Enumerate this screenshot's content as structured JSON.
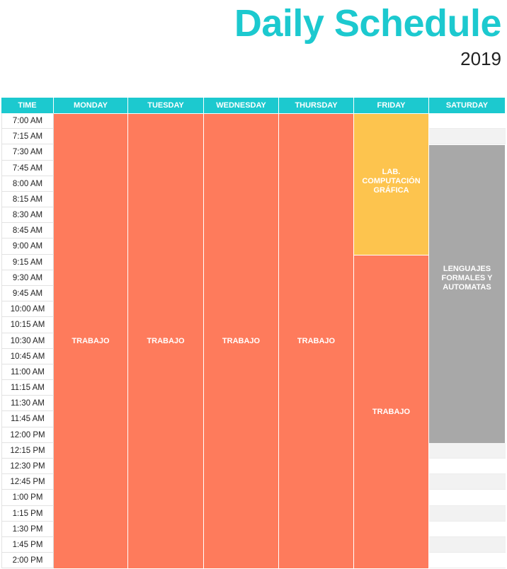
{
  "header": {
    "title": "Daily Schedule",
    "year": "2019"
  },
  "colors": {
    "accent": "#1cc9cf",
    "work": "#fe7b5c",
    "lab": "#fdc44e",
    "lecture": "#a8a8a8",
    "stripe": "#f2f2f2"
  },
  "columns": [
    "TIME",
    "MONDAY",
    "TUESDAY",
    "WEDNESDAY",
    "THURSDAY",
    "FRIDAY",
    "SATURDAY"
  ],
  "times": [
    "7:00 AM",
    "7:15 AM",
    "7:30 AM",
    "7:45 AM",
    "8:00 AM",
    "8:15 AM",
    "8:30 AM",
    "8:45 AM",
    "9:00 AM",
    "9:15 AM",
    "9:30 AM",
    "9:45 AM",
    "10:00 AM",
    "10:15 AM",
    "10:30 AM",
    "10:45 AM",
    "11:00 AM",
    "11:15 AM",
    "11:30 AM",
    "11:45 AM",
    "12:00 PM",
    "12:15 PM",
    "12:30 PM",
    "12:45 PM",
    "1:00 PM",
    "1:15 PM",
    "1:30 PM",
    "1:45 PM",
    "2:00 PM"
  ],
  "events": [
    {
      "day": 1,
      "start": 0,
      "end": 29,
      "label": "TRABAJO",
      "kind": "work",
      "align": "center"
    },
    {
      "day": 2,
      "start": 0,
      "end": 29,
      "label": "TRABAJO",
      "kind": "work",
      "align": "center"
    },
    {
      "day": 3,
      "start": 0,
      "end": 29,
      "label": "TRABAJO",
      "kind": "work",
      "align": "center"
    },
    {
      "day": 4,
      "start": 0,
      "end": 29,
      "label": "TRABAJO",
      "kind": "work",
      "align": "center"
    },
    {
      "day": 5,
      "start": 0,
      "end": 9,
      "label": "LAB. COMPUTACIÓN GRÁFICA",
      "kind": "lab",
      "align": "upper"
    },
    {
      "day": 5,
      "start": 9,
      "end": 29,
      "label": "TRABAJO",
      "kind": "work",
      "align": "center"
    },
    {
      "day": 6,
      "start": 2,
      "end": 21,
      "label": "LENGUAJES FORMALES Y AUTOMATAS",
      "kind": "lecture",
      "align": "upper"
    }
  ]
}
